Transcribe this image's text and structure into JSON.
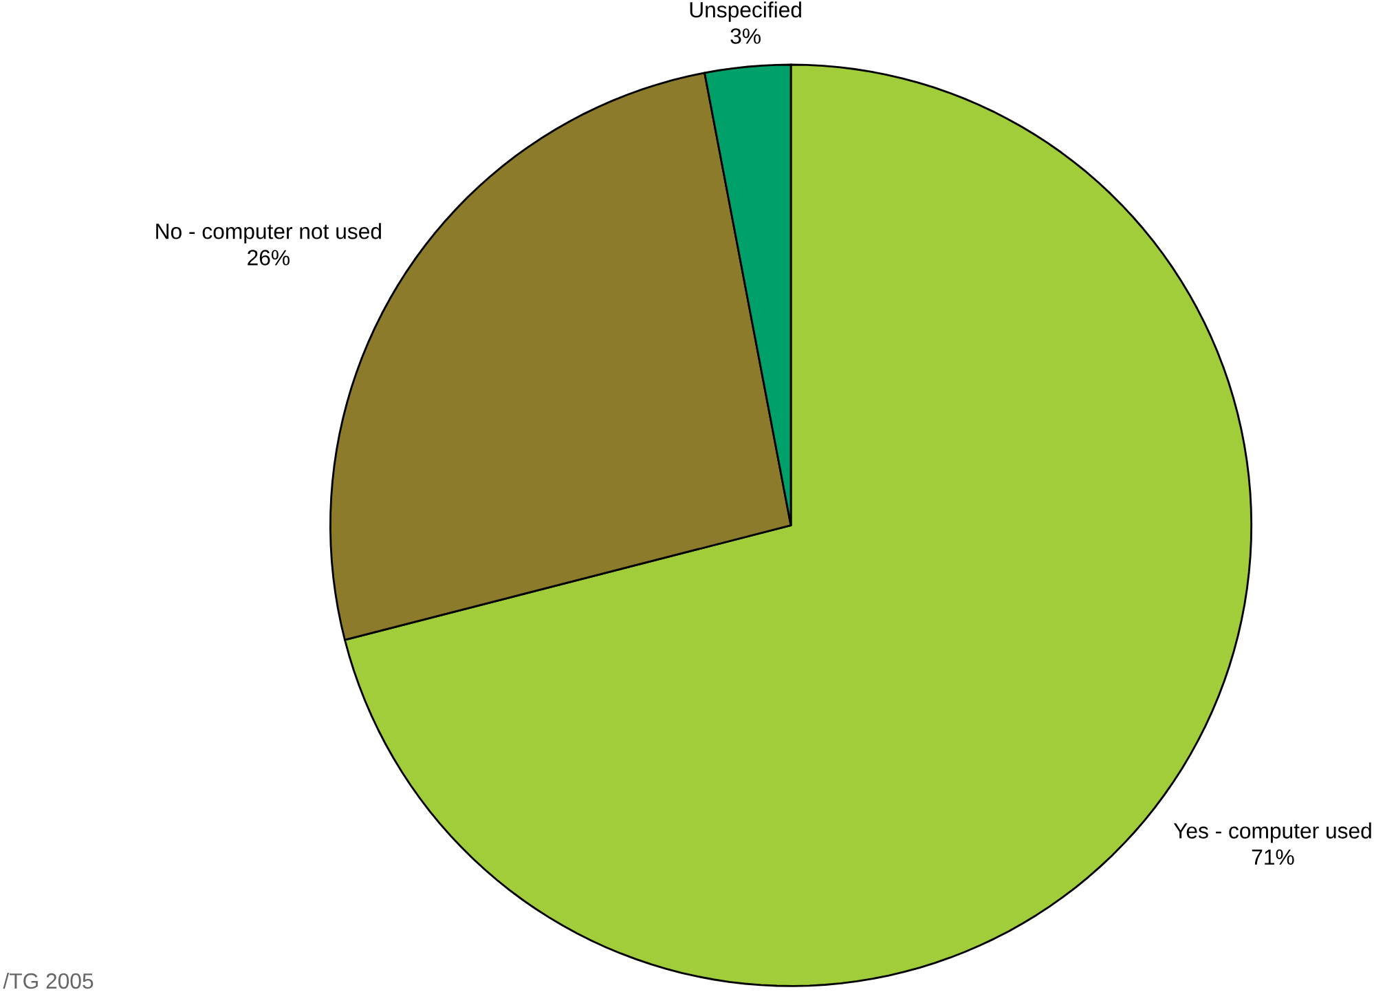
{
  "chart_data": {
    "type": "pie",
    "categories": [
      "Yes - computer used",
      "No - computer not used",
      "Unspecified"
    ],
    "values": [
      71,
      26,
      3
    ],
    "colors": [
      "#a2cd3a",
      "#8b7b2b",
      "#00a06b"
    ],
    "value_labels": [
      "71%",
      "26%",
      "3%"
    ],
    "annotations": [
      "/TG 2005"
    ]
  }
}
